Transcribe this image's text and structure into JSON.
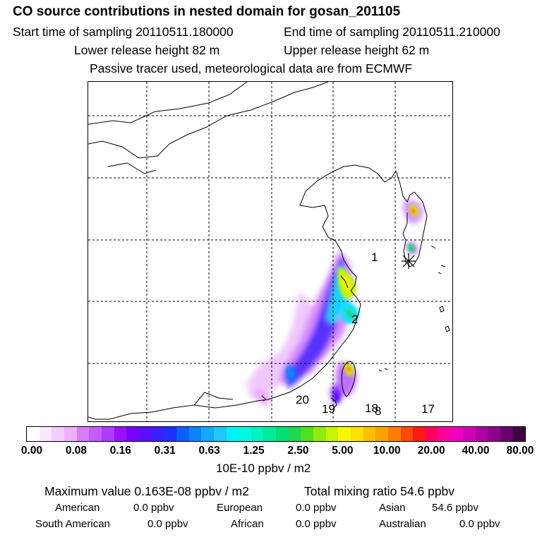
{
  "title": "CO  source contributions in nested domain for gosan_201105",
  "header": {
    "start_label": "Start time of sampling 20110511.180000",
    "end_label": "End time of sampling 20110511.210000",
    "lower_release": "Lower release height   82 m",
    "upper_release": "Upper release height   62 m",
    "tracer_note": "Passive tracer used, meteorological data are from ECMWF"
  },
  "map": {
    "region_labels": [
      "1",
      "2",
      "20",
      "19",
      "18",
      "8",
      "17"
    ],
    "receptor_marker": "asterisk-icon"
  },
  "colorbar": {
    "ticks": [
      "0.00",
      "0.08",
      "0.16",
      "0.31",
      "0.63",
      "1.25",
      "2.50",
      "5.00",
      "10.00",
      "20.00",
      "40.00",
      "80.00"
    ],
    "colors": [
      "#ffffff",
      "#fbe6ff",
      "#f4ccff",
      "#eeb0ff",
      "#d77dff",
      "#c65cff",
      "#b03bff",
      "#9a10ff",
      "#7a00ff",
      "#5a10ff",
      "#3a20ff",
      "#1d30ff",
      "#0a60ff",
      "#0a84ff",
      "#14a8ff",
      "#1cc8ff",
      "#00f2ff",
      "#00f7e0",
      "#00f2c0",
      "#00eb9a",
      "#00e070",
      "#20d850",
      "#50e020",
      "#90ec10",
      "#c8f400",
      "#f8f800",
      "#ffe000",
      "#ffc000",
      "#ffa000",
      "#ff7a00",
      "#ff4a00",
      "#ff1a10",
      "#ff0060",
      "#ff00a0",
      "#f000c0",
      "#d000b8",
      "#b000a8",
      "#900090",
      "#6a0070",
      "#400040"
    ],
    "unit": "10E-10 ppbv / m2"
  },
  "stats": {
    "maximum": "Maximum value  0.163E-08 ppbv / m2",
    "total": "Total mixing ratio       54.6 ppbv",
    "american_label": "American",
    "american_value": "0.0 ppbv",
    "european_label": "European",
    "european_value": "0.0 ppbv",
    "asian_label": "Asian",
    "asian_value": "54.6 ppbv",
    "south_american_label": "South American",
    "south_american_value": "0.0 ppbv",
    "african_label": "African",
    "african_value": "0.0 ppbv",
    "australian_label": "Australian",
    "australian_value": "0.0 ppbv"
  }
}
